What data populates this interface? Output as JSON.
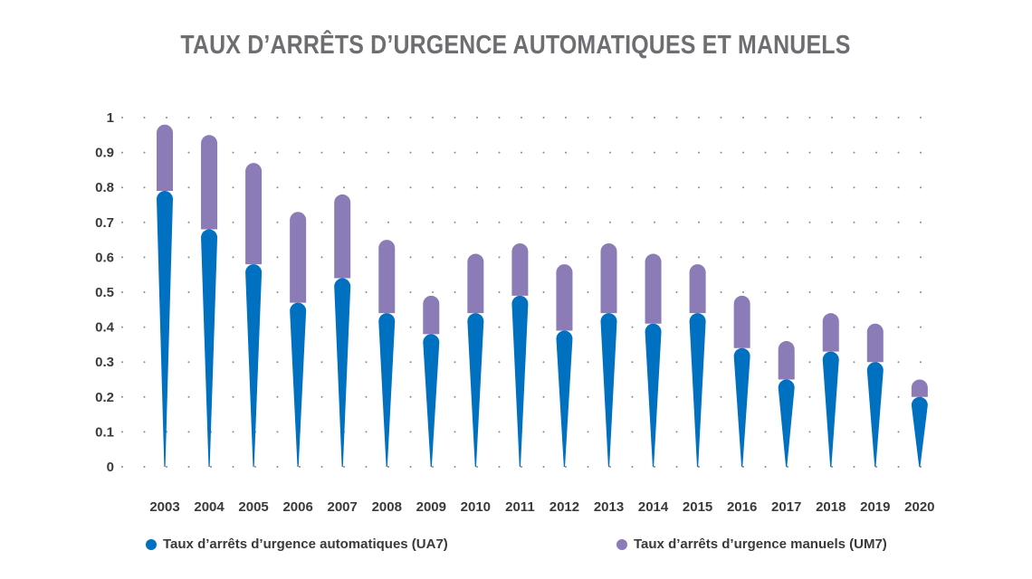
{
  "chart_data": {
    "type": "bar",
    "title": "TAUX D’ARRÊTS D’URGENCE AUTOMATIQUES ET MANUELS",
    "categories": [
      "2003",
      "2004",
      "2005",
      "2006",
      "2007",
      "2008",
      "2009",
      "2010",
      "2011",
      "2012",
      "2013",
      "2014",
      "2015",
      "2016",
      "2017",
      "2018",
      "2019",
      "2020"
    ],
    "series": [
      {
        "name": "Taux d’arrêts d’urgence automatiques (UA7)",
        "color": "#0070c0",
        "values": [
          0.79,
          0.68,
          0.58,
          0.47,
          0.54,
          0.44,
          0.38,
          0.44,
          0.49,
          0.39,
          0.44,
          0.41,
          0.44,
          0.34,
          0.25,
          0.33,
          0.3,
          0.2
        ]
      },
      {
        "name": "Taux d’arrêts d’urgence manuels (UM7)",
        "color": "#8b7bb6",
        "values": [
          0.19,
          0.27,
          0.29,
          0.26,
          0.24,
          0.21,
          0.11,
          0.17,
          0.15,
          0.19,
          0.2,
          0.2,
          0.14,
          0.15,
          0.11,
          0.11,
          0.11,
          0.05
        ]
      }
    ],
    "stacked": true,
    "ylim": [
      0,
      1
    ],
    "yticks": [
      "0",
      "0.1",
      "0.2",
      "0.3",
      "0.4",
      "0.5",
      "0.6",
      "0.7",
      "0.8",
      "0.9",
      "1"
    ],
    "grid": "dotted",
    "legend": "bottom"
  }
}
